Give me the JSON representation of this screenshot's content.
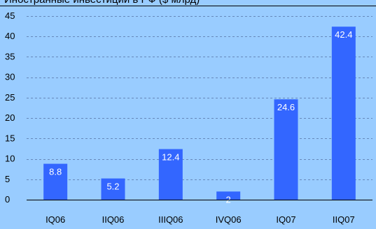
{
  "chart_data": {
    "type": "bar",
    "title": "Иностранные инвестиции в РФ ($ млрд)",
    "xlabel": "",
    "ylabel": "",
    "categories": [
      "IQ06",
      "IIQ06",
      "IIIQ06",
      "IVQ06",
      "IQ07",
      "IIQ07"
    ],
    "values": [
      8.8,
      5.2,
      12.4,
      2,
      24.6,
      42.4
    ],
    "data_labels": [
      "8.8",
      "5.2",
      "12.4",
      "2",
      "24.6",
      "42.4"
    ],
    "ylim": [
      0,
      45
    ],
    "yticks": [
      0,
      5,
      10,
      15,
      20,
      25,
      30,
      35,
      40,
      45
    ],
    "ytick_labels": [
      "0",
      "5",
      "10",
      "15",
      "20",
      "25",
      "30",
      "35",
      "40",
      "45"
    ],
    "grid": true,
    "legend": "none",
    "colors": {
      "background": "#99CCFF",
      "bar": "#3366FF",
      "grid": "#6688BB",
      "axis": "#000000",
      "data_label": "#FFFFFF"
    }
  }
}
